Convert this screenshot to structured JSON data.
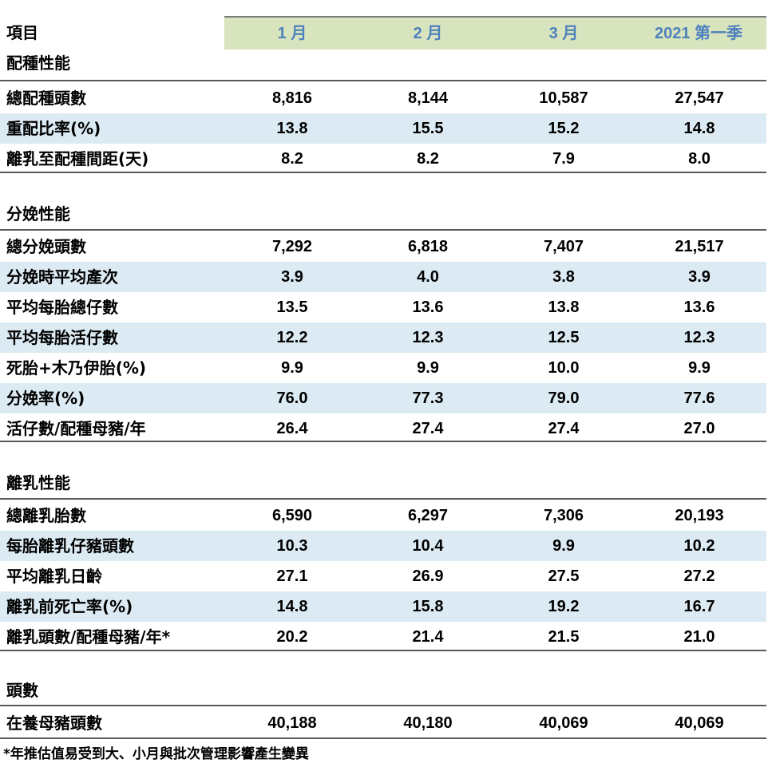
{
  "header": {
    "item_label": "項目",
    "columns": [
      "1 月",
      "2 月",
      "3 月",
      "2021 第一季"
    ]
  },
  "sections": [
    {
      "title": "配種性能",
      "rows": [
        {
          "label": "總配種頭數",
          "values": [
            "8,816",
            "8,144",
            "10,587",
            "27,547"
          ]
        },
        {
          "label": "重配比率(%)",
          "values": [
            "13.8",
            "15.5",
            "15.2",
            "14.8"
          ]
        },
        {
          "label": "離乳至配種間距(天)",
          "values": [
            "8.2",
            "8.2",
            "7.9",
            "8.0"
          ]
        }
      ]
    },
    {
      "title": "分娩性能",
      "rows": [
        {
          "label": "總分娩頭數",
          "values": [
            "7,292",
            "6,818",
            "7,407",
            "21,517"
          ]
        },
        {
          "label": "分娩時平均產次",
          "values": [
            "3.9",
            "4.0",
            "3.8",
            "3.9"
          ]
        },
        {
          "label": "平均每胎總仔數",
          "values": [
            "13.5",
            "13.6",
            "13.8",
            "13.6"
          ]
        },
        {
          "label": "平均每胎活仔數",
          "values": [
            "12.2",
            "12.3",
            "12.5",
            "12.3"
          ]
        },
        {
          "label": "死胎+木乃伊胎(%)",
          "values": [
            "9.9",
            "9.9",
            "10.0",
            "9.9"
          ]
        },
        {
          "label": "分娩率(%)",
          "values": [
            "76.0",
            "77.3",
            "79.0",
            "77.6"
          ]
        },
        {
          "label": "活仔數/配種母豬/年",
          "values": [
            "26.4",
            "27.4",
            "27.4",
            "27.0"
          ]
        }
      ]
    },
    {
      "title": "離乳性能",
      "rows": [
        {
          "label": "總離乳胎數",
          "values": [
            "6,590",
            "6,297",
            "7,306",
            "20,193"
          ]
        },
        {
          "label": "每胎離乳仔豬頭數",
          "values": [
            "10.3",
            "10.4",
            "9.9",
            "10.2"
          ]
        },
        {
          "label": "平均離乳日齡",
          "values": [
            "27.1",
            "26.9",
            "27.5",
            "27.2"
          ]
        },
        {
          "label": "離乳前死亡率(%)",
          "values": [
            "14.8",
            "15.8",
            "19.2",
            "16.7"
          ]
        },
        {
          "label": "離乳頭數/配種母豬/年*",
          "values": [
            "20.2",
            "21.4",
            "21.5",
            "21.0"
          ]
        }
      ]
    },
    {
      "title": "頭數",
      "rows": [
        {
          "label": "在養母豬頭數",
          "values": [
            "40,188",
            "40,180",
            "40,069",
            "40,069"
          ]
        }
      ]
    }
  ],
  "footnote": "*年推估值易受到大、小月與批次管理影響產生變異",
  "colors": {
    "header_bg": "#d7e4bd",
    "header_text": "#4f81bd",
    "row_shade": "#dcebf3"
  }
}
